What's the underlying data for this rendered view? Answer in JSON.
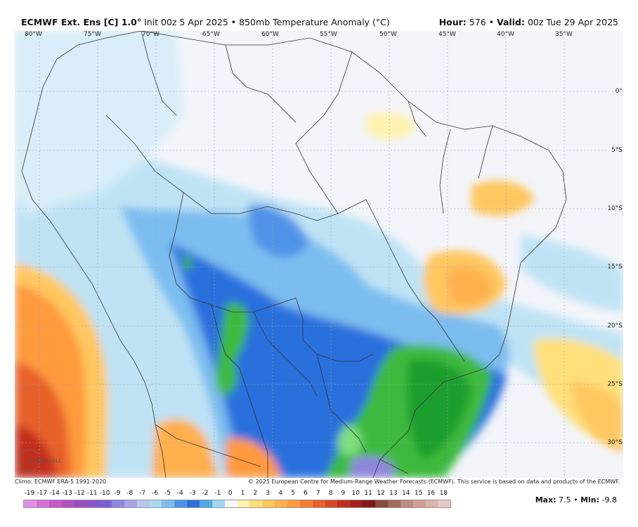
{
  "header": {
    "model": "ECMWF Ext. Ens [C] 1.0°",
    "init": "Init 00z 5 Apr 2025",
    "separator": "•",
    "field": "850mb Temperature Anomaly (°C)",
    "hour_label": "Hour:",
    "hour_value": "576",
    "valid_label": "Valid:",
    "valid_value": "00z Tue 29 Apr 2025"
  },
  "map": {
    "longitudes": [
      "80°W",
      "75°W",
      "70°W",
      "65°W",
      "60°W",
      "55°W",
      "50°W",
      "45°W",
      "40°W",
      "35°W"
    ],
    "latitudes": [
      "0°",
      "5°S",
      "10°S",
      "15°S",
      "20°S",
      "25°S",
      "30°S"
    ],
    "logo_text": "WEATHERBELL"
  },
  "footer": {
    "climo": "Climo: ECMWF ERA-5 1991-2020",
    "copyright": "© 2025 European Centre for Medium-Range Weather Forecasts (ECMWF). This service is based on data and products of the ECMWF."
  },
  "colorbar": {
    "labels": [
      "-19",
      "-17",
      "-14",
      "-13",
      "-12",
      "-11",
      "-10",
      "-9",
      "-8",
      "-7",
      "-6",
      "-5",
      "-4",
      "-3",
      "-2",
      "-1",
      "0",
      "1",
      "2",
      "3",
      "4",
      "5",
      "6",
      "7",
      "8",
      "9",
      "10",
      "11",
      "12",
      "13",
      "14",
      "15",
      "16",
      "18"
    ],
    "colors": [
      "#e38ee3",
      "#d56fd6",
      "#c45ac9",
      "#b44fbe",
      "#9b4fbd",
      "#8a55c8",
      "#7c62d2",
      "#8f86dc",
      "#a7a5e6",
      "#b9c6ee",
      "#a9d8f0",
      "#7cbdf0",
      "#4f93e8",
      "#2c6fdd",
      "#4fa8e8",
      "#9fd6f2",
      "#f4f6fb",
      "#fff3b0",
      "#ffe07a",
      "#ffc760",
      "#ffb04e",
      "#ff9a3e",
      "#f47d33",
      "#e8612a",
      "#d84624",
      "#c32d1e",
      "#a5201a",
      "#7f1816",
      "#8a4a3e",
      "#a46a5e",
      "#bd8a80",
      "#cf9f98",
      "#dcb3ad",
      "#e8c8c4"
    ],
    "max_label": "Max:",
    "max_value": "7.5",
    "min_label": "Min:",
    "min_value": "-9.8"
  }
}
